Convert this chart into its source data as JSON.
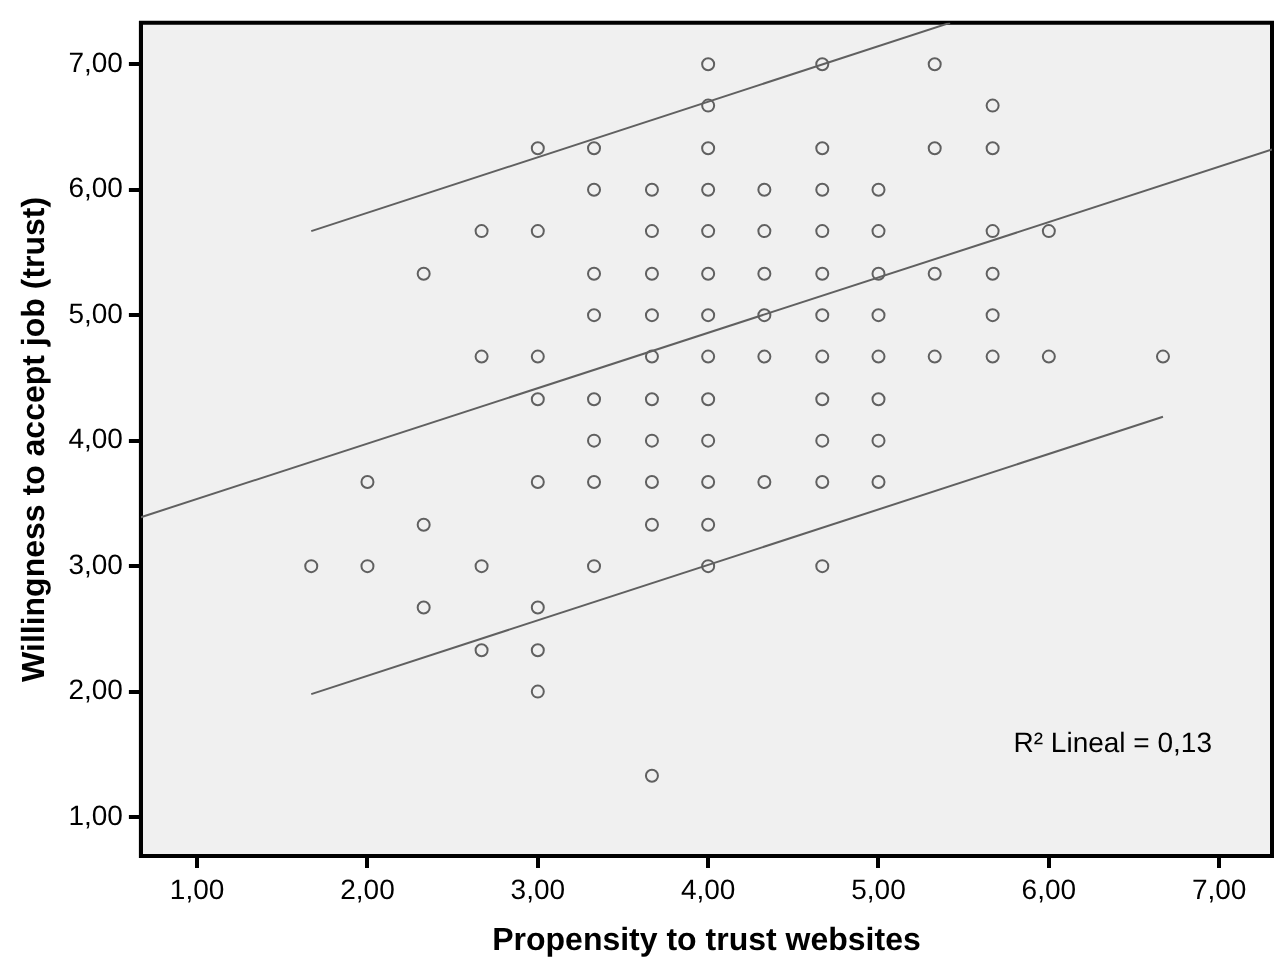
{
  "chart_data": {
    "type": "scatter",
    "xlabel": "Propensity to trust websites",
    "ylabel": "Willingness to accept job (trust)",
    "xlim": [
      0.67,
      7.31
    ],
    "ylim": [
      0.69,
      7.33
    ],
    "xticks": [
      {
        "value": 1,
        "label": "1,00"
      },
      {
        "value": 2,
        "label": "2,00"
      },
      {
        "value": 3,
        "label": "3,00"
      },
      {
        "value": 4,
        "label": "4,00"
      },
      {
        "value": 5,
        "label": "5,00"
      },
      {
        "value": 6,
        "label": "6,00"
      },
      {
        "value": 7,
        "label": "7,00"
      }
    ],
    "yticks": [
      {
        "value": 1,
        "label": "1,00"
      },
      {
        "value": 2,
        "label": "2,00"
      },
      {
        "value": 3,
        "label": "3,00"
      },
      {
        "value": 4,
        "label": "4,00"
      },
      {
        "value": 5,
        "label": "5,00"
      },
      {
        "value": 6,
        "label": "6,00"
      },
      {
        "value": 7,
        "label": "7,00"
      }
    ],
    "grid": false,
    "legend": false,
    "marker": "circle",
    "annotations": [
      "R² Lineal = 0,13"
    ],
    "series": [
      {
        "color": "#606060",
        "x": [
          1.67,
          2,
          2,
          2.33,
          2.33,
          2.33,
          2.67,
          2.67,
          2.67,
          2.67,
          3,
          3,
          3,
          3,
          3,
          3,
          3,
          3,
          3.33,
          3.33,
          3.33,
          3.33,
          3.33,
          3.33,
          3.33,
          3.33,
          3.67,
          3.67,
          3.67,
          3.67,
          3.67,
          3.67,
          3.67,
          3.67,
          3.67,
          3.67,
          4,
          4,
          4,
          4,
          4,
          4,
          4,
          4,
          4,
          4,
          4,
          4,
          4,
          4.33,
          4.33,
          4.33,
          4.33,
          4.33,
          4.33,
          4.67,
          4.67,
          4.67,
          4.67,
          4.67,
          4.67,
          4.67,
          4.67,
          4.67,
          4.67,
          4.67,
          5,
          5,
          5,
          5,
          5,
          5,
          5,
          5,
          5.33,
          5.33,
          5.33,
          5.33,
          5.67,
          5.67,
          5.67,
          5.67,
          5.67,
          5.67,
          6,
          6,
          6.67
        ],
        "values": [
          3,
          3.67,
          3,
          5.33,
          3.33,
          2.67,
          5.67,
          4.67,
          3,
          2.33,
          6.33,
          5.67,
          4.67,
          4.33,
          3.67,
          2.67,
          2.33,
          2,
          6.33,
          6,
          5.33,
          5,
          4.33,
          4,
          3.67,
          3,
          6,
          5.67,
          5.33,
          5,
          4.67,
          4.33,
          4,
          3.67,
          3.33,
          1.33,
          7,
          6.67,
          6.33,
          6,
          5.67,
          5.33,
          5,
          4.67,
          4.33,
          4,
          3.67,
          3.33,
          3,
          6,
          5.67,
          5.33,
          5,
          4.67,
          3.67,
          7,
          6.33,
          6,
          5.67,
          5.33,
          5,
          4.67,
          4.33,
          4,
          3.67,
          3,
          6,
          5.67,
          5.33,
          5,
          4.67,
          4.33,
          4,
          3.67,
          7,
          6.33,
          5.33,
          4.67,
          6.67,
          6.33,
          5.67,
          5.33,
          5,
          4.67,
          5.67,
          4.67,
          4.67
        ]
      },
      {
        "type": "line",
        "color": "#606060",
        "marker": "none",
        "x": [
          0.67,
          7.31
        ],
        "values": [
          3.39,
          6.32
        ]
      },
      {
        "type": "line",
        "color": "#606060",
        "marker": "none",
        "x": [
          1.67,
          5.42
        ],
        "values": [
          5.67,
          7.33
        ]
      },
      {
        "type": "line",
        "color": "#606060",
        "marker": "none",
        "x": [
          1.67,
          6.67
        ],
        "values": [
          1.98,
          4.19
        ]
      }
    ]
  }
}
